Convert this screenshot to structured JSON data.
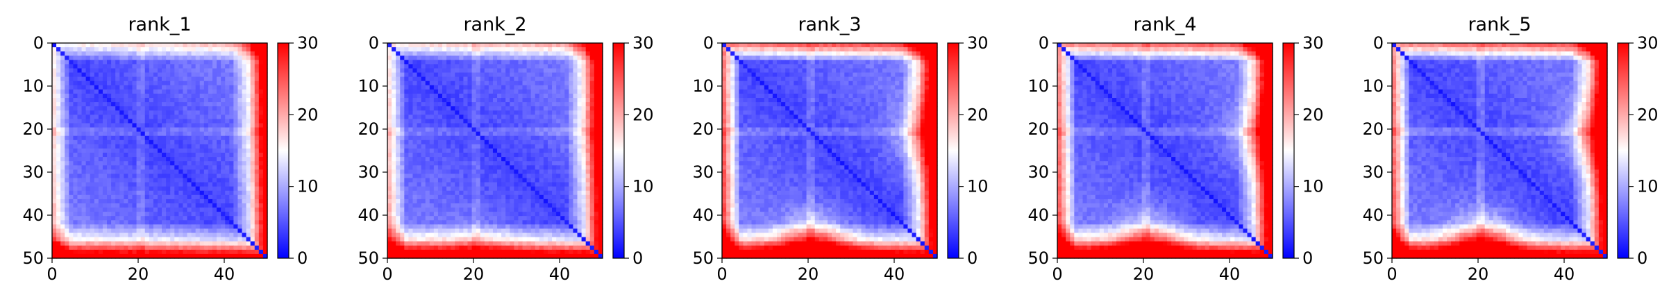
{
  "chart_data": [
    {
      "type": "heatmap",
      "title": "rank_1",
      "xlabel": "",
      "ylabel": "",
      "xlim": [
        0,
        50
      ],
      "ylim": [
        50,
        0
      ],
      "xticks": [
        0,
        20,
        40
      ],
      "yticks": [
        0,
        10,
        20,
        30,
        40,
        50
      ],
      "colorbar": {
        "range": [
          0,
          30
        ],
        "ticks": [
          0,
          10,
          20,
          30
        ],
        "colormap": "bwr"
      },
      "grid": false,
      "profile": {
        "top_band": 0.55,
        "bottom_band": 0.75,
        "bottom_hotspot": 0.0,
        "row20_line": 0.35
      }
    },
    {
      "type": "heatmap",
      "title": "rank_2",
      "xlabel": "",
      "ylabel": "",
      "xlim": [
        0,
        50
      ],
      "ylim": [
        50,
        0
      ],
      "xticks": [
        0,
        20,
        40
      ],
      "yticks": [
        0,
        10,
        20,
        30,
        40,
        50
      ],
      "colorbar": {
        "range": [
          0,
          30
        ],
        "ticks": [
          0,
          10,
          20,
          30
        ],
        "colormap": "bwr"
      },
      "grid": false,
      "profile": {
        "top_band": 0.6,
        "bottom_band": 0.85,
        "bottom_hotspot": 0.2,
        "row20_line": 0.35
      }
    },
    {
      "type": "heatmap",
      "title": "rank_3",
      "xlabel": "",
      "ylabel": "",
      "xlim": [
        0,
        50
      ],
      "ylim": [
        50,
        0
      ],
      "xticks": [
        0,
        20,
        40
      ],
      "yticks": [
        0,
        10,
        20,
        30,
        40,
        50
      ],
      "colorbar": {
        "range": [
          0,
          30
        ],
        "ticks": [
          0,
          10,
          20,
          30
        ],
        "colormap": "bwr"
      },
      "grid": false,
      "profile": {
        "top_band": 0.9,
        "bottom_band": 0.9,
        "bottom_hotspot": 0.9,
        "row20_line": 0.4
      }
    },
    {
      "type": "heatmap",
      "title": "rank_4",
      "xlabel": "",
      "ylabel": "",
      "xlim": [
        0,
        50
      ],
      "ylim": [
        50,
        0
      ],
      "xticks": [
        0,
        20,
        40
      ],
      "yticks": [
        0,
        10,
        20,
        30,
        40,
        50
      ],
      "colorbar": {
        "range": [
          0,
          30
        ],
        "ticks": [
          0,
          10,
          20,
          30
        ],
        "colormap": "bwr"
      },
      "grid": false,
      "profile": {
        "top_band": 0.85,
        "bottom_band": 0.9,
        "bottom_hotspot": 0.8,
        "row20_line": 0.4
      }
    },
    {
      "type": "heatmap",
      "title": "rank_5",
      "xlabel": "",
      "ylabel": "",
      "xlim": [
        0,
        50
      ],
      "ylim": [
        50,
        0
      ],
      "xticks": [
        0,
        20,
        40
      ],
      "yticks": [
        0,
        10,
        20,
        30,
        40,
        50
      ],
      "colorbar": {
        "range": [
          0,
          30
        ],
        "ticks": [
          0,
          10,
          20,
          30
        ],
        "colormap": "bwr"
      },
      "grid": false,
      "profile": {
        "top_band": 0.85,
        "bottom_band": 0.85,
        "bottom_hotspot": 1.0,
        "row20_line": 0.45
      }
    }
  ]
}
